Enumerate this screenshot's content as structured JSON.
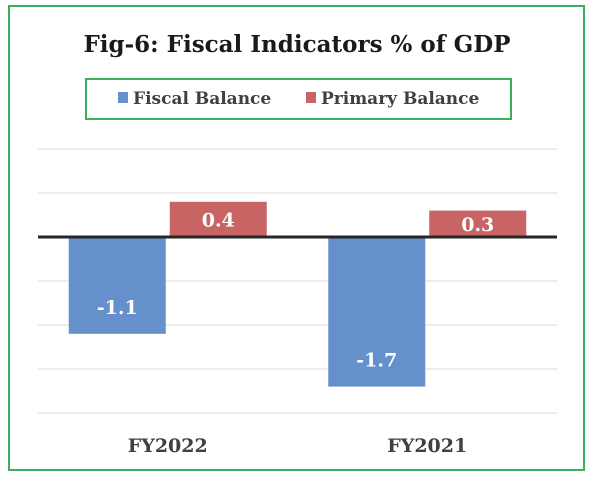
{
  "chart_data": {
    "type": "bar",
    "title": "Fig-6: Fiscal Indicators % of GDP",
    "categories": [
      "FY2022",
      "FY2021"
    ],
    "series": [
      {
        "name": "Fiscal Balance",
        "color": "#6690cb",
        "values": [
          -1.1,
          -1.7
        ],
        "labels": [
          "-1.1",
          "-1.7"
        ]
      },
      {
        "name": "Primary Balance",
        "color": "#c86464",
        "values": [
          0.4,
          0.3
        ],
        "labels": [
          "0.4",
          "0.3"
        ]
      }
    ],
    "ylim": [
      -2.0,
      1.0
    ],
    "gridlines": [
      -2.0,
      -1.5,
      -1.0,
      -0.5,
      0.5,
      1.0
    ],
    "grid": true,
    "show_y_tick_labels": false,
    "legend_position": "top",
    "xlabel": "",
    "ylabel": ""
  }
}
